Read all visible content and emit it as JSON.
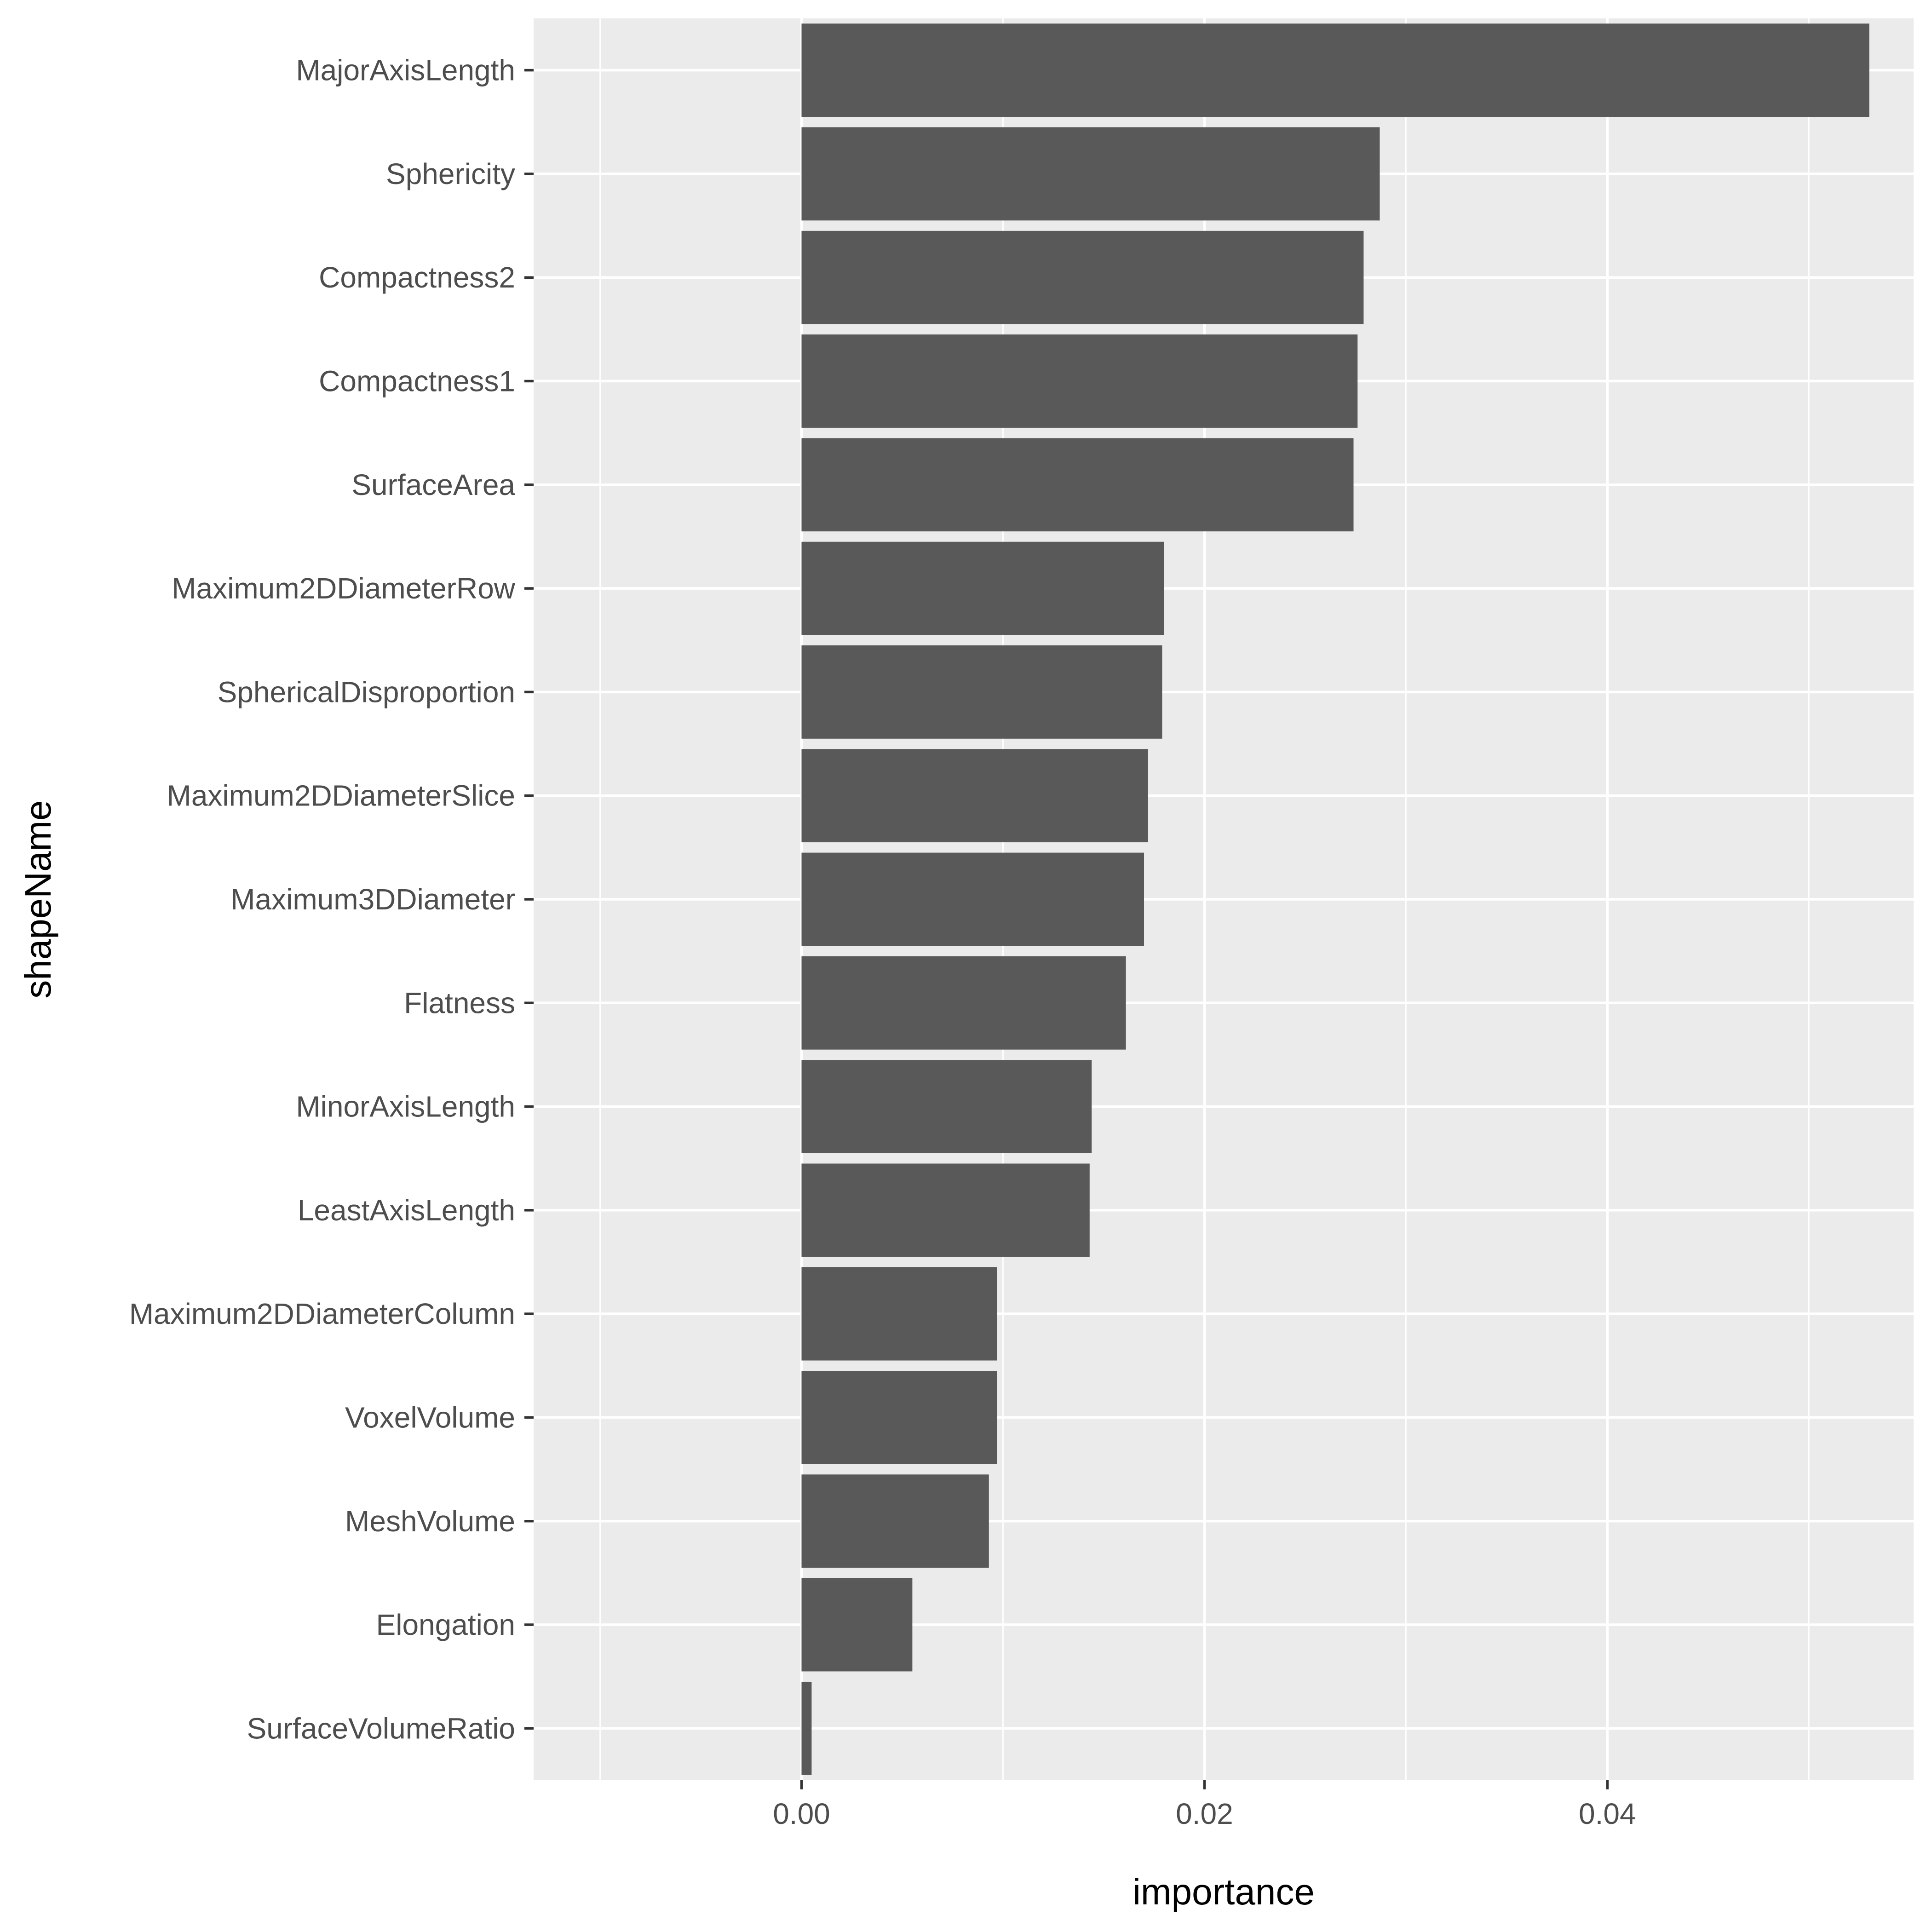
{
  "chart_data": {
    "type": "bar",
    "orientation": "horizontal",
    "xlabel": "importance",
    "ylabel": "shapeName",
    "xlim": [
      -0.0133,
      0.0552
    ],
    "x_ticks": [
      0.0,
      0.02,
      0.04
    ],
    "x_tick_labels": [
      "0.00",
      "0.02",
      "0.04"
    ],
    "grid": true,
    "bar_color": "#595959",
    "panel_color": "#ebebeb",
    "categories": [
      "MajorAxisLength",
      "Sphericity",
      "Compactness2",
      "Compactness1",
      "SurfaceArea",
      "Maximum2DDiameterRow",
      "SphericalDisproportion",
      "Maximum2DDiameterSlice",
      "Maximum3DDiameter",
      "Flatness",
      "MinorAxisLength",
      "LeastAxisLength",
      "Maximum2DDiameterColumn",
      "VoxelVolume",
      "MeshVolume",
      "Elongation",
      "SurfaceVolumeRatio"
    ],
    "values": [
      0.053,
      0.0287,
      0.0279,
      0.0276,
      0.0274,
      0.018,
      0.0179,
      0.0172,
      0.017,
      0.0161,
      0.0144,
      0.0143,
      0.0097,
      0.0097,
      0.0093,
      0.0055,
      0.0005
    ]
  }
}
